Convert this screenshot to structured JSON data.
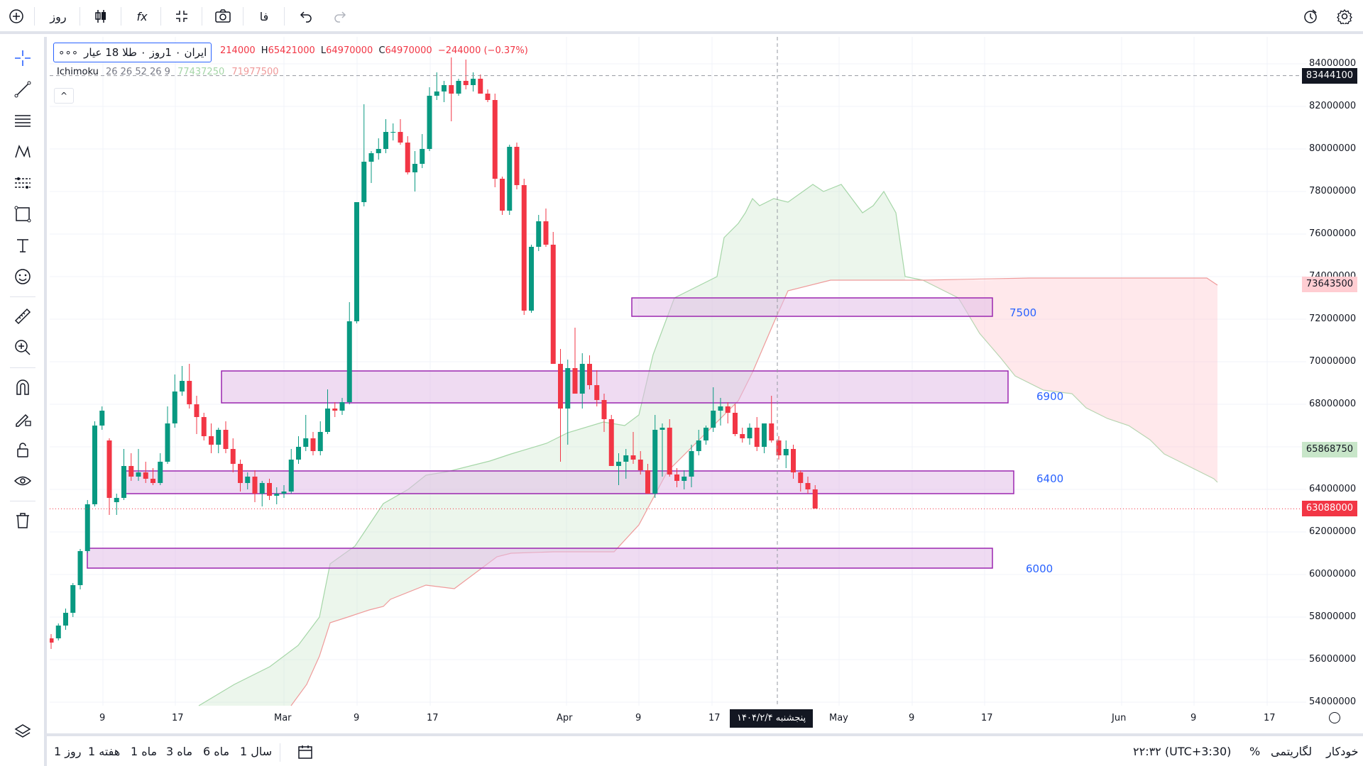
{
  "toolbar": {
    "interval_label": "روز",
    "indicators_label": "fx",
    "lang_label": "فا"
  },
  "legend": {
    "symbol": "ایران ۰ 1روز ۰ طلا 18 عیار",
    "more": "∘∘∘",
    "open": "214000",
    "high_label": "H",
    "high": "65421000",
    "low_label": "L",
    "low": "64970000",
    "close_label": "C",
    "close": "64970000",
    "change": "−244000 (−0.37%)",
    "ichimoku_name": "Ichimoku",
    "ichimoku_params": "26 26 52 26 9",
    "ichimoku_v1": "77437250",
    "ichimoku_v2": "71977500",
    "collapse": "^"
  },
  "price_axis": {
    "ticks": [
      "84000000",
      "82000000",
      "80000000",
      "78000000",
      "76000000",
      "74000000",
      "72000000",
      "70000000",
      "68000000",
      "66000000",
      "64000000",
      "62000000",
      "60000000",
      "58000000",
      "56000000",
      "54000000"
    ],
    "crosshair_price": "83444100",
    "span_b_price": "73643500",
    "span_a_price": "65868750",
    "last_price": "63088000"
  },
  "time_axis": {
    "ticks": [
      "9",
      "17",
      "Mar",
      "9",
      "17",
      "Apr",
      "9",
      "17",
      "May",
      "9",
      "17",
      "Jun",
      "9",
      "17"
    ],
    "crosshair_date": "پنجشنبه ۱۴۰۴/۲/۴"
  },
  "zones": [
    {
      "label": "7500"
    },
    {
      "label": "6900"
    },
    {
      "label": "6400"
    },
    {
      "label": "6000"
    }
  ],
  "bottom": {
    "ranges": [
      "1 روز",
      "1 هفته",
      "1 ماه",
      "3 ماه",
      "6 ماه",
      "1 سال"
    ],
    "time": "۲۲:۳۲ (UTC+3:30)",
    "percent": "%",
    "log": "لگاریتمی",
    "auto": "خودکار"
  },
  "colors": {
    "up": "#089981",
    "down": "#f23645",
    "zone_fill": "#e1bee7",
    "zone_border": "#9c27b0",
    "zone_text": "#2962ff",
    "cloud_green": "#c8e6c9",
    "cloud_red": "#ffcdd2"
  },
  "chart_data": {
    "type": "candlestick",
    "x_axis_ticks": [
      "9",
      "17",
      "Mar",
      "9",
      "17",
      "Apr",
      "9",
      "17",
      "May",
      "9",
      "17",
      "Jun",
      "9",
      "17"
    ],
    "y_range": [
      54000000,
      84000000
    ],
    "candles": [
      [
        57000000,
        57200000,
        56500000,
        56800000
      ],
      [
        57000000,
        57700000,
        56900000,
        57600000
      ],
      [
        57600000,
        58400000,
        57400000,
        58200000
      ],
      [
        58200000,
        59600000,
        58000000,
        59500000
      ],
      [
        59500000,
        61200000,
        59300000,
        61100000
      ],
      [
        61100000,
        63500000,
        61000000,
        63300000
      ],
      [
        63300000,
        67200000,
        63200000,
        67000000
      ],
      [
        67000000,
        67900000,
        66800000,
        67700000
      ],
      [
        66300000,
        66400000,
        62800000,
        63600000
      ],
      [
        63400000,
        63800000,
        62800000,
        63600000
      ],
      [
        63600000,
        65900000,
        63500000,
        65100000
      ],
      [
        65100000,
        65700000,
        64400000,
        64600000
      ],
      [
        64600000,
        65900000,
        64400000,
        64800000
      ],
      [
        64800000,
        65300000,
        64300000,
        64500000
      ],
      [
        64500000,
        65000000,
        64200000,
        64300000
      ],
      [
        64300000,
        65700000,
        64200000,
        65300000
      ],
      [
        65300000,
        67900000,
        65200000,
        67100000
      ],
      [
        67100000,
        69400000,
        66900000,
        68600000
      ],
      [
        68600000,
        69800000,
        68400000,
        69100000
      ],
      [
        69100000,
        69900000,
        67800000,
        68000000
      ],
      [
        68000000,
        68400000,
        66600000,
        67400000
      ],
      [
        67400000,
        67600000,
        66300000,
        66500000
      ],
      [
        66500000,
        67100000,
        65700000,
        66100000
      ],
      [
        66100000,
        66900000,
        65700000,
        66800000
      ],
      [
        66800000,
        67200000,
        65700000,
        65900000
      ],
      [
        65900000,
        66400000,
        64800000,
        65200000
      ],
      [
        65200000,
        65400000,
        63900000,
        64300000
      ],
      [
        64300000,
        64800000,
        64000000,
        64600000
      ],
      [
        64600000,
        64900000,
        63400000,
        63800000
      ],
      [
        63800000,
        64400000,
        63200000,
        64300000
      ],
      [
        64300000,
        64500000,
        63500000,
        63700000
      ],
      [
        63700000,
        64100000,
        63300000,
        63800000
      ],
      [
        63800000,
        64200000,
        63600000,
        63900000
      ],
      [
        63900000,
        65900000,
        63800000,
        65400000
      ],
      [
        65400000,
        66500000,
        65200000,
        66000000
      ],
      [
        66000000,
        67500000,
        65800000,
        66400000
      ],
      [
        66400000,
        66700000,
        65600000,
        65800000
      ],
      [
        65800000,
        67200000,
        65600000,
        66700000
      ],
      [
        66700000,
        68700000,
        66600000,
        67800000
      ],
      [
        67800000,
        68100000,
        67400000,
        67700000
      ],
      [
        67700000,
        68300000,
        67500000,
        68100000
      ],
      [
        68100000,
        72800000,
        68000000,
        71900000
      ],
      [
        71900000,
        77500000,
        71800000,
        77500000
      ],
      [
        77500000,
        82100000,
        77300000,
        79400000
      ],
      [
        79400000,
        79900000,
        78400000,
        79800000
      ],
      [
        79800000,
        80500000,
        79500000,
        80000000
      ],
      [
        80000000,
        81400000,
        79800000,
        80800000
      ],
      [
        80800000,
        81200000,
        80400000,
        80800000
      ],
      [
        80800000,
        81400000,
        80200000,
        80300000
      ],
      [
        80300000,
        80600000,
        78800000,
        78900000
      ],
      [
        78900000,
        79900000,
        78000000,
        79300000
      ],
      [
        79300000,
        80700000,
        79100000,
        80000000
      ],
      [
        80000000,
        82900000,
        79900000,
        82500000
      ],
      [
        82500000,
        83600000,
        82300000,
        82700000
      ],
      [
        82700000,
        83200000,
        82200000,
        83000000
      ],
      [
        83000000,
        84300000,
        81300000,
        82600000
      ],
      [
        82600000,
        83300000,
        82500000,
        83200000
      ],
      [
        83200000,
        84200000,
        82800000,
        83000000
      ],
      [
        83000000,
        83600000,
        82700000,
        83300000
      ],
      [
        83300000,
        83500000,
        82700000,
        82600000
      ],
      [
        82600000,
        82800000,
        82200000,
        82300000
      ],
      [
        82300000,
        82600000,
        78200000,
        78600000
      ],
      [
        78600000,
        78700000,
        76900000,
        77100000
      ],
      [
        77100000,
        80200000,
        76900000,
        80100000
      ],
      [
        80100000,
        80300000,
        78100000,
        78300000
      ],
      [
        78300000,
        78600000,
        72200000,
        72400000
      ],
      [
        72400000,
        75500000,
        72300000,
        75400000
      ],
      [
        75400000,
        76900000,
        75200000,
        76600000
      ],
      [
        76600000,
        77200000,
        75400000,
        75500000
      ],
      [
        75500000,
        76100000,
        69900000,
        69900000
      ],
      [
        69900000,
        70600000,
        65300000,
        67800000
      ],
      [
        67800000,
        70100000,
        66100000,
        69700000
      ],
      [
        69700000,
        71600000,
        68800000,
        68500000
      ],
      [
        68500000,
        70400000,
        67800000,
        69900000
      ],
      [
        69900000,
        70300000,
        68700000,
        68900000
      ],
      [
        68900000,
        69600000,
        67900000,
        68200000
      ],
      [
        68200000,
        68500000,
        66700000,
        67300000
      ],
      [
        67300000,
        67500000,
        65100000,
        65100000
      ],
      [
        65100000,
        65700000,
        64200000,
        65300000
      ],
      [
        65300000,
        65900000,
        64500000,
        65600000
      ],
      [
        65600000,
        66700000,
        65200000,
        65400000
      ],
      [
        65400000,
        65800000,
        64700000,
        64900000
      ],
      [
        64900000,
        65200000,
        63800000,
        63800000
      ],
      [
        63800000,
        67500000,
        63600000,
        66800000
      ],
      [
        66800000,
        67100000,
        64600000,
        66900000
      ],
      [
        66900000,
        67300000,
        64600000,
        64700000
      ],
      [
        64700000,
        65000000,
        64100000,
        64400000
      ],
      [
        64400000,
        64900000,
        64000000,
        64600000
      ],
      [
        64600000,
        66100000,
        64100000,
        65800000
      ],
      [
        65800000,
        66800000,
        65600000,
        66300000
      ],
      [
        66300000,
        67000000,
        66100000,
        66900000
      ],
      [
        66900000,
        68800000,
        66700000,
        67700000
      ],
      [
        67700000,
        68300000,
        67000000,
        67900000
      ],
      [
        67900000,
        68100000,
        67100000,
        67600000
      ],
      [
        67600000,
        68000000,
        66500000,
        66600000
      ],
      [
        66600000,
        66900000,
        66200000,
        66400000
      ],
      [
        66400000,
        67100000,
        66100000,
        66900000
      ],
      [
        66900000,
        67400000,
        65800000,
        66000000
      ],
      [
        66000000,
        67100000,
        65700000,
        67100000
      ],
      [
        67100000,
        68400000,
        66200000,
        66300000
      ],
      [
        66300000,
        66500000,
        65400000,
        65600000
      ],
      [
        65600000,
        66300000,
        65000000,
        65900000
      ],
      [
        65900000,
        66100000,
        64500000,
        64800000
      ],
      [
        64800000,
        64900000,
        63900000,
        64300000
      ],
      [
        64300000,
        64600000,
        63800000,
        64000000
      ],
      [
        64000000,
        64200000,
        63100000,
        63100000
      ]
    ]
  }
}
